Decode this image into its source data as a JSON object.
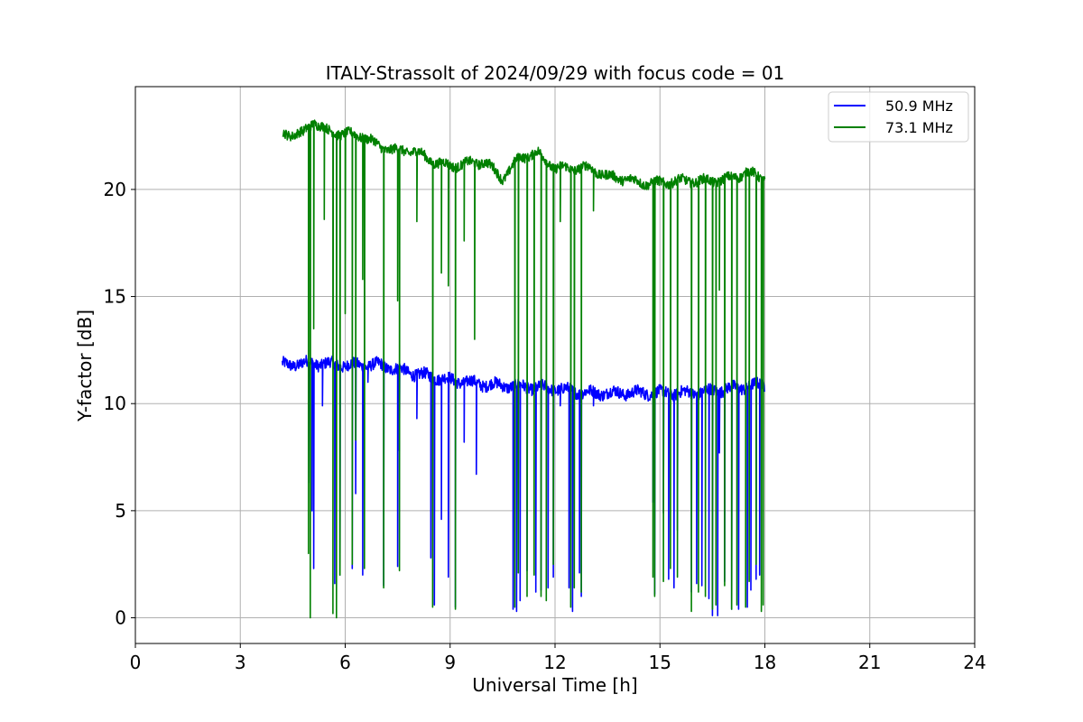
{
  "chart_data": {
    "type": "line",
    "title": "ITALY-Strassolt of 2024/09/29 with focus code = 01",
    "xlabel": "Universal Time [h]",
    "ylabel": "Y-factor [dB]",
    "xlim": [
      0,
      24
    ],
    "ylim": [
      -1.2,
      24.8
    ],
    "xticks": [
      0,
      3,
      6,
      9,
      12,
      15,
      18,
      21,
      24
    ],
    "yticks": [
      0,
      5,
      10,
      15,
      20
    ],
    "grid": true,
    "legend_position": "top-right",
    "series": [
      {
        "name": "50.9 MHz",
        "color": "#0000ff",
        "trend": [
          [
            4.2,
            11.8
          ],
          [
            5.0,
            11.9
          ],
          [
            6.0,
            11.8
          ],
          [
            7.0,
            11.8
          ],
          [
            8.0,
            11.4
          ],
          [
            9.0,
            11.1
          ],
          [
            10.0,
            10.9
          ],
          [
            11.0,
            10.8
          ],
          [
            12.0,
            10.7
          ],
          [
            13.0,
            10.5
          ],
          [
            14.0,
            10.5
          ],
          [
            15.0,
            10.5
          ],
          [
            16.0,
            10.5
          ],
          [
            17.0,
            10.7
          ],
          [
            18.0,
            10.9
          ]
        ],
        "dips": [
          [
            4.95,
            6.3
          ],
          [
            5.05,
            5.0
          ],
          [
            5.1,
            2.3
          ],
          [
            5.35,
            9.9
          ],
          [
            5.7,
            1.6
          ],
          [
            5.85,
            2.0
          ],
          [
            6.2,
            2.3
          ],
          [
            6.3,
            5.8
          ],
          [
            6.5,
            2.0
          ],
          [
            6.65,
            11.0
          ],
          [
            7.1,
            1.5
          ],
          [
            7.5,
            2.4
          ],
          [
            7.55,
            7.8
          ],
          [
            8.05,
            9.3
          ],
          [
            8.45,
            2.8
          ],
          [
            8.55,
            0.6
          ],
          [
            8.75,
            4.6
          ],
          [
            8.95,
            1.9
          ],
          [
            9.15,
            0.5
          ],
          [
            9.4,
            8.2
          ],
          [
            9.75,
            6.7
          ],
          [
            10.8,
            0.4
          ],
          [
            10.9,
            0.3
          ],
          [
            11.0,
            0.8
          ],
          [
            11.2,
            2.2
          ],
          [
            11.45,
            1.2
          ],
          [
            11.6,
            1.3
          ],
          [
            11.8,
            1.4
          ],
          [
            11.95,
            1.9
          ],
          [
            12.15,
            9.9
          ],
          [
            12.4,
            1.4
          ],
          [
            12.5,
            0.3
          ],
          [
            12.7,
            2.1
          ],
          [
            12.75,
            1.0
          ],
          [
            13.1,
            9.9
          ],
          [
            14.8,
            5.4
          ],
          [
            14.85,
            1.1
          ],
          [
            15.1,
            4.9
          ],
          [
            15.25,
            1.8
          ],
          [
            15.4,
            1.4
          ],
          [
            15.5,
            4.1
          ],
          [
            15.9,
            1.2
          ],
          [
            16.05,
            1.6
          ],
          [
            16.2,
            1.5
          ],
          [
            16.4,
            0.9
          ],
          [
            16.5,
            0.1
          ],
          [
            16.65,
            0.1
          ],
          [
            16.7,
            7.7
          ],
          [
            16.85,
            1.7
          ],
          [
            17.05,
            0.4
          ],
          [
            17.25,
            0.4
          ],
          [
            17.5,
            0.5
          ],
          [
            17.6,
            1.3
          ],
          [
            17.75,
            1.8
          ],
          [
            17.85,
            2.0
          ]
        ]
      },
      {
        "name": "73.1 MHz",
        "color": "#008000",
        "trend": [
          [
            4.2,
            22.6
          ],
          [
            4.8,
            22.6
          ],
          [
            5.1,
            23.2
          ],
          [
            5.5,
            22.7
          ],
          [
            6.0,
            22.6
          ],
          [
            6.5,
            22.5
          ],
          [
            7.0,
            22.0
          ],
          [
            7.5,
            21.8
          ],
          [
            8.0,
            21.8
          ],
          [
            8.5,
            21.3
          ],
          [
            9.0,
            21.1
          ],
          [
            9.5,
            21.2
          ],
          [
            10.0,
            21.3
          ],
          [
            10.5,
            20.5
          ],
          [
            11.0,
            21.5
          ],
          [
            11.5,
            21.7
          ],
          [
            12.0,
            21.0
          ],
          [
            12.5,
            21.0
          ],
          [
            13.0,
            21.0
          ],
          [
            13.5,
            20.6
          ],
          [
            14.0,
            20.5
          ],
          [
            14.5,
            20.3
          ],
          [
            15.0,
            20.3
          ],
          [
            15.5,
            20.4
          ],
          [
            16.0,
            20.4
          ],
          [
            16.5,
            20.4
          ],
          [
            17.0,
            20.5
          ],
          [
            17.5,
            20.8
          ],
          [
            18.0,
            20.5
          ]
        ],
        "dips": [
          [
            4.95,
            3.0
          ],
          [
            5.0,
            0.0
          ],
          [
            5.1,
            13.5
          ],
          [
            5.4,
            18.6
          ],
          [
            5.65,
            0.2
          ],
          [
            5.75,
            0.0
          ],
          [
            5.85,
            2.0
          ],
          [
            6.0,
            14.2
          ],
          [
            6.2,
            2.5
          ],
          [
            6.3,
            8.3
          ],
          [
            6.5,
            15.8
          ],
          [
            6.55,
            2.3
          ],
          [
            7.1,
            1.4
          ],
          [
            7.5,
            14.8
          ],
          [
            7.55,
            2.2
          ],
          [
            8.05,
            18.5
          ],
          [
            8.5,
            0.5
          ],
          [
            8.75,
            16.1
          ],
          [
            8.95,
            15.5
          ],
          [
            9.15,
            0.4
          ],
          [
            9.4,
            17.6
          ],
          [
            9.7,
            13.0
          ],
          [
            10.85,
            0.5
          ],
          [
            10.95,
            2.1
          ],
          [
            11.2,
            1.0
          ],
          [
            11.4,
            2.0
          ],
          [
            11.6,
            1.0
          ],
          [
            11.75,
            0.8
          ],
          [
            11.95,
            2.5
          ],
          [
            12.15,
            18.5
          ],
          [
            12.45,
            0.5
          ],
          [
            12.55,
            1.4
          ],
          [
            12.75,
            1.2
          ],
          [
            13.1,
            19.0
          ],
          [
            14.8,
            1.9
          ],
          [
            14.85,
            1.0
          ],
          [
            15.1,
            1.7
          ],
          [
            15.3,
            2.3
          ],
          [
            15.5,
            1.9
          ],
          [
            15.9,
            0.3
          ],
          [
            16.1,
            1.2
          ],
          [
            16.3,
            1.0
          ],
          [
            16.5,
            0.4
          ],
          [
            16.6,
            0.6
          ],
          [
            16.7,
            15.3
          ],
          [
            16.85,
            1.5
          ],
          [
            17.05,
            0.4
          ],
          [
            17.2,
            0.6
          ],
          [
            17.45,
            0.5
          ],
          [
            17.55,
            1.7
          ],
          [
            17.75,
            2.5
          ],
          [
            17.9,
            0.3
          ],
          [
            17.95,
            0.6
          ]
        ]
      }
    ]
  }
}
